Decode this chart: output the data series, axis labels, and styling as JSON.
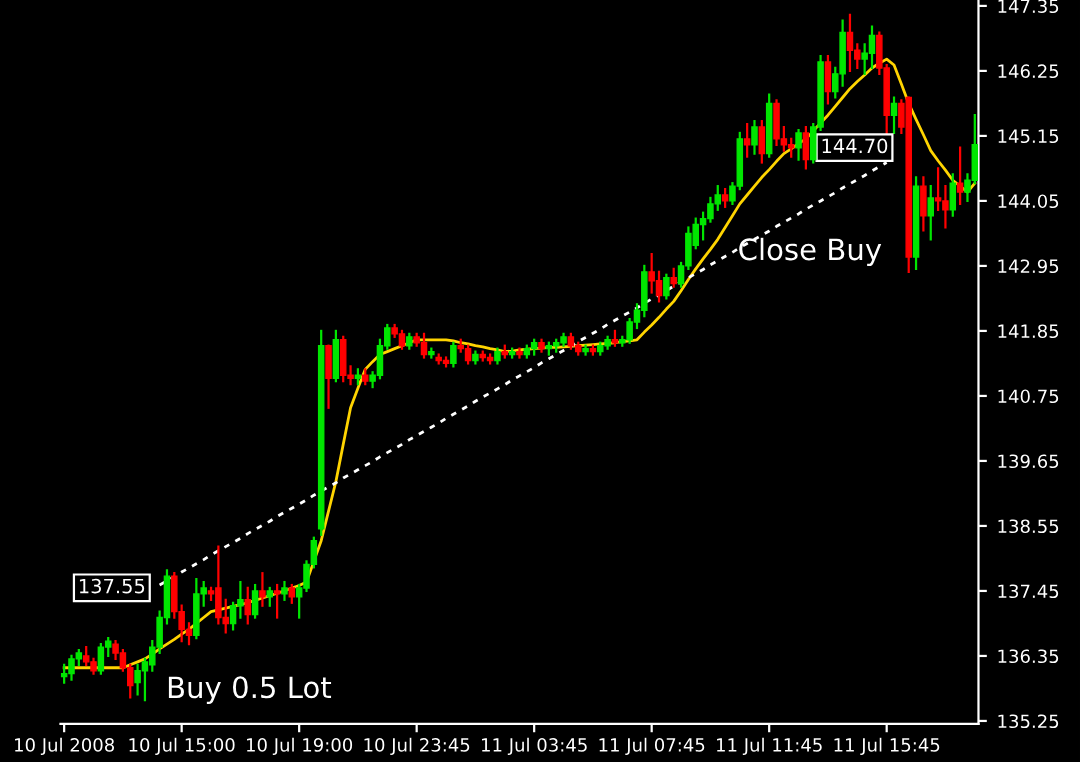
{
  "chart_data": {
    "type": "candlestick",
    "categories": [
      "10 Jul 2008",
      null,
      null,
      null,
      null,
      null,
      null,
      null,
      null,
      null,
      null,
      null,
      null,
      null,
      null,
      null,
      "10 Jul 15:00",
      null,
      null,
      null,
      null,
      null,
      null,
      null,
      null,
      null,
      null,
      null,
      null,
      null,
      null,
      null,
      "10 Jul 19:00",
      null,
      null,
      null,
      null,
      null,
      null,
      null,
      null,
      null,
      null,
      null,
      null,
      null,
      null,
      null,
      "10 Jul 23:45",
      null,
      null,
      null,
      null,
      null,
      null,
      null,
      null,
      null,
      null,
      null,
      null,
      null,
      null,
      null,
      "11 Jul 03:45",
      null,
      null,
      null,
      null,
      null,
      null,
      null,
      null,
      null,
      null,
      null,
      null,
      null,
      null,
      null,
      "11 Jul 07:45",
      null,
      null,
      null,
      null,
      null,
      null,
      null,
      null,
      null,
      null,
      null,
      null,
      null,
      null,
      null,
      "11 Jul 11:45",
      null,
      null,
      null,
      null,
      null,
      null,
      null,
      null,
      null,
      null,
      null,
      null,
      null,
      null,
      null,
      "11 Jul 15:45",
      null,
      null,
      null,
      null,
      null,
      null,
      null,
      null,
      null,
      null,
      null,
      null
    ],
    "ohlc": [
      [
        136.0,
        136.2,
        135.9,
        136.05
      ],
      [
        136.05,
        136.35,
        135.95,
        136.3
      ],
      [
        136.3,
        136.45,
        136.2,
        136.4
      ],
      [
        136.35,
        136.5,
        136.2,
        136.25
      ],
      [
        136.25,
        136.3,
        136.05,
        136.1
      ],
      [
        136.1,
        136.55,
        136.05,
        136.5
      ],
      [
        136.5,
        136.65,
        136.35,
        136.6
      ],
      [
        136.55,
        136.6,
        136.3,
        136.4
      ],
      [
        136.4,
        136.45,
        136.1,
        136.15
      ],
      [
        136.15,
        136.2,
        135.65,
        135.85
      ],
      [
        135.9,
        136.2,
        135.7,
        136.1
      ],
      [
        136.1,
        136.3,
        135.6,
        136.25
      ],
      [
        136.2,
        136.6,
        136.1,
        136.5
      ],
      [
        136.5,
        137.1,
        136.4,
        137.0
      ],
      [
        137.0,
        137.8,
        136.9,
        137.7
      ],
      [
        137.7,
        137.75,
        137.0,
        137.1
      ],
      [
        137.1,
        137.2,
        136.6,
        136.8
      ],
      [
        136.8,
        136.9,
        136.55,
        136.7
      ],
      [
        136.7,
        137.65,
        136.65,
        137.4
      ],
      [
        137.4,
        137.6,
        137.2,
        137.5
      ],
      [
        137.45,
        137.5,
        137.3,
        137.4
      ],
      [
        137.5,
        138.2,
        136.9,
        137.0
      ],
      [
        137.0,
        137.3,
        136.75,
        136.9
      ],
      [
        136.9,
        137.25,
        136.8,
        137.2
      ],
      [
        137.2,
        137.6,
        137.0,
        137.3
      ],
      [
        137.3,
        137.5,
        136.9,
        137.05
      ],
      [
        137.05,
        137.55,
        137.0,
        137.45
      ],
      [
        137.45,
        137.75,
        137.2,
        137.35
      ],
      [
        137.35,
        137.5,
        137.2,
        137.45
      ],
      [
        137.45,
        137.55,
        137.0,
        137.4
      ],
      [
        137.4,
        137.6,
        137.3,
        137.5
      ],
      [
        137.5,
        137.55,
        137.25,
        137.35
      ],
      [
        137.35,
        137.55,
        137.0,
        137.5
      ],
      [
        137.5,
        137.95,
        137.45,
        137.9
      ],
      [
        137.9,
        138.35,
        137.85,
        138.3
      ],
      [
        138.5,
        141.85,
        138.4,
        141.6
      ],
      [
        141.6,
        141.6,
        140.55,
        141.05
      ],
      [
        141.05,
        141.85,
        141.0,
        141.7
      ],
      [
        141.7,
        141.75,
        141.0,
        141.1
      ],
      [
        141.1,
        141.25,
        140.95,
        141.05
      ],
      [
        141.05,
        141.2,
        140.95,
        141.1
      ],
      [
        141.1,
        141.2,
        140.95,
        141.0
      ],
      [
        141.0,
        141.15,
        140.9,
        141.1
      ],
      [
        141.1,
        141.7,
        141.05,
        141.6
      ],
      [
        141.6,
        141.95,
        141.55,
        141.9
      ],
      [
        141.9,
        141.95,
        141.75,
        141.8
      ],
      [
        141.8,
        141.85,
        141.55,
        141.6
      ],
      [
        141.6,
        141.8,
        141.55,
        141.75
      ],
      [
        141.75,
        141.8,
        141.6,
        141.65
      ],
      [
        141.65,
        141.8,
        141.4,
        141.45
      ],
      [
        141.45,
        141.55,
        141.4,
        141.5
      ],
      [
        141.4,
        141.45,
        141.3,
        141.35
      ],
      [
        141.35,
        141.4,
        141.25,
        141.3
      ],
      [
        141.3,
        141.65,
        141.25,
        141.6
      ],
      [
        141.6,
        141.7,
        141.5,
        141.55
      ],
      [
        141.55,
        141.6,
        141.3,
        141.35
      ],
      [
        141.35,
        141.5,
        141.3,
        141.45
      ],
      [
        141.45,
        141.5,
        141.35,
        141.4
      ],
      [
        141.4,
        141.45,
        141.3,
        141.35
      ],
      [
        141.35,
        141.55,
        141.3,
        141.5
      ],
      [
        141.5,
        141.6,
        141.4,
        141.45
      ],
      [
        141.45,
        141.55,
        141.4,
        141.5
      ],
      [
        141.5,
        141.55,
        141.4,
        141.45
      ],
      [
        141.45,
        141.6,
        141.4,
        141.55
      ],
      [
        141.55,
        141.7,
        141.45,
        141.65
      ],
      [
        141.65,
        141.7,
        141.5,
        141.55
      ],
      [
        141.55,
        141.65,
        141.45,
        141.6
      ],
      [
        141.6,
        141.7,
        141.5,
        141.65
      ],
      [
        141.65,
        141.8,
        141.6,
        141.75
      ],
      [
        141.75,
        141.8,
        141.55,
        141.6
      ],
      [
        141.6,
        141.65,
        141.45,
        141.5
      ],
      [
        141.5,
        141.6,
        141.45,
        141.55
      ],
      [
        141.55,
        141.6,
        141.45,
        141.5
      ],
      [
        141.5,
        141.65,
        141.45,
        141.6
      ],
      [
        141.6,
        141.75,
        141.55,
        141.7
      ],
      [
        141.7,
        141.85,
        141.6,
        141.65
      ],
      [
        141.65,
        141.75,
        141.6,
        141.7
      ],
      [
        141.7,
        142.05,
        141.65,
        142.0
      ],
      [
        142.0,
        142.3,
        141.9,
        142.2
      ],
      [
        142.2,
        142.95,
        142.1,
        142.85
      ],
      [
        142.85,
        143.15,
        142.5,
        142.7
      ],
      [
        142.7,
        142.85,
        142.35,
        142.45
      ],
      [
        142.45,
        142.8,
        142.4,
        142.75
      ],
      [
        142.75,
        142.9,
        142.6,
        142.65
      ],
      [
        142.65,
        143.0,
        142.6,
        142.95
      ],
      [
        142.95,
        143.6,
        142.9,
        143.5
      ],
      [
        143.3,
        143.75,
        143.25,
        143.65
      ],
      [
        143.65,
        143.85,
        143.4,
        143.75
      ],
      [
        143.75,
        144.1,
        143.7,
        144.0
      ],
      [
        144.0,
        144.3,
        143.9,
        144.15
      ],
      [
        144.15,
        144.25,
        143.95,
        144.05
      ],
      [
        144.05,
        144.35,
        144.0,
        144.3
      ],
      [
        144.3,
        145.2,
        144.25,
        145.1
      ],
      [
        145.1,
        145.35,
        144.8,
        145.0
      ],
      [
        145.0,
        145.4,
        144.85,
        145.3
      ],
      [
        145.3,
        145.4,
        144.7,
        144.85
      ],
      [
        144.85,
        145.85,
        144.8,
        145.7
      ],
      [
        145.7,
        145.75,
        145.0,
        145.1
      ],
      [
        145.1,
        145.3,
        144.9,
        145.0
      ],
      [
        145.0,
        145.1,
        144.8,
        144.95
      ],
      [
        144.95,
        145.25,
        144.75,
        145.2
      ],
      [
        145.2,
        145.3,
        144.6,
        144.75
      ],
      [
        144.75,
        145.35,
        144.7,
        145.3
      ],
      [
        145.3,
        146.5,
        145.25,
        146.4
      ],
      [
        146.4,
        146.5,
        145.7,
        145.9
      ],
      [
        145.9,
        146.3,
        145.8,
        146.2
      ],
      [
        146.2,
        147.1,
        146.0,
        146.9
      ],
      [
        146.9,
        147.2,
        146.25,
        146.6
      ],
      [
        146.6,
        146.7,
        146.3,
        146.45
      ],
      [
        146.45,
        146.7,
        146.2,
        146.55
      ],
      [
        146.55,
        147.0,
        146.3,
        146.85
      ],
      [
        146.85,
        146.9,
        146.2,
        146.3
      ],
      [
        146.3,
        146.35,
        145.2,
        145.5
      ],
      [
        145.5,
        145.8,
        145.2,
        145.7
      ],
      [
        145.7,
        145.75,
        145.2,
        145.3
      ],
      [
        145.8,
        145.8,
        142.85,
        143.1
      ],
      [
        143.1,
        144.45,
        142.9,
        144.3
      ],
      [
        144.3,
        144.45,
        143.55,
        143.8
      ],
      [
        143.8,
        144.3,
        143.4,
        144.1
      ],
      [
        144.1,
        144.6,
        143.9,
        144.05
      ],
      [
        144.05,
        144.3,
        143.6,
        143.9
      ],
      [
        143.9,
        144.5,
        143.8,
        144.35
      ],
      [
        144.35,
        144.95,
        144.0,
        144.2
      ],
      [
        144.2,
        144.5,
        144.05,
        144.4
      ],
      [
        144.4,
        145.5,
        144.35,
        145.0
      ]
    ],
    "colors": [
      "#00e600",
      "#00e600",
      "#00e600",
      "#ff0000",
      "#ff0000",
      "#00e600",
      "#00e600",
      "#ff0000",
      "#ff0000",
      "#ff0000",
      "#00e600",
      "#00e600",
      "#00e600",
      "#00e600",
      "#00e600",
      "#ff0000",
      "#ff0000",
      "#ff0000",
      "#00e600",
      "#00e600",
      "#ff0000",
      "#ff0000",
      "#ff0000",
      "#00e600",
      "#00e600",
      "#ff0000",
      "#00e600",
      "#ff0000",
      "#00e600",
      "#ff0000",
      "#00e600",
      "#ff0000",
      "#00e600",
      "#00e600",
      "#00e600",
      "#00e600",
      "#ff0000",
      "#00e600",
      "#ff0000",
      "#ff0000",
      "#00e600",
      "#ff0000",
      "#00e600",
      "#00e600",
      "#00e600",
      "#ff0000",
      "#ff0000",
      "#00e600",
      "#ff0000",
      "#ff0000",
      "#00e600",
      "#ff0000",
      "#ff0000",
      "#00e600",
      "#ff0000",
      "#ff0000",
      "#00e600",
      "#ff0000",
      "#ff0000",
      "#00e600",
      "#ff0000",
      "#00e600",
      "#ff0000",
      "#00e600",
      "#00e600",
      "#ff0000",
      "#00e600",
      "#00e600",
      "#00e600",
      "#ff0000",
      "#ff0000",
      "#00e600",
      "#ff0000",
      "#00e600",
      "#00e600",
      "#ff0000",
      "#00e600",
      "#00e600",
      "#00e600",
      "#00e600",
      "#ff0000",
      "#ff0000",
      "#00e600",
      "#ff0000",
      "#00e600",
      "#00e600",
      "#00e600",
      "#00e600",
      "#00e600",
      "#00e600",
      "#ff0000",
      "#00e600",
      "#00e600",
      "#ff0000",
      "#00e600",
      "#ff0000",
      "#00e600",
      "#ff0000",
      "#ff0000",
      "#ff0000",
      "#00e600",
      "#ff0000",
      "#00e600",
      "#00e600",
      "#ff0000",
      "#00e600",
      "#00e600",
      "#ff0000",
      "#ff0000",
      "#00e600",
      "#00e600",
      "#ff0000",
      "#ff0000",
      "#00e600",
      "#ff0000",
      "#ff0000",
      "#00e600",
      "#ff0000",
      "#00e600",
      "#ff0000",
      "#ff0000",
      "#00e600",
      "#ff0000",
      "#00e600",
      "#00e600"
    ],
    "series": [
      {
        "type": "line",
        "color": "#ffd400",
        "values": [
          136.15,
          136.15,
          136.15,
          136.15,
          136.15,
          136.15,
          136.15,
          136.15,
          136.15,
          136.2,
          136.25,
          136.3,
          136.38,
          136.47,
          136.55,
          136.63,
          136.72,
          136.8,
          136.9,
          137.0,
          137.1,
          137.13,
          137.16,
          137.19,
          137.22,
          137.25,
          137.29,
          137.33,
          137.37,
          137.41,
          137.45,
          137.5,
          137.54,
          137.6,
          137.95,
          138.3,
          138.8,
          139.3,
          139.93,
          140.55,
          140.88,
          141.2,
          141.33,
          141.45,
          141.5,
          141.55,
          141.6,
          141.65,
          141.7,
          141.7,
          141.7,
          141.7,
          141.7,
          141.68,
          141.65,
          141.63,
          141.6,
          141.58,
          141.55,
          141.53,
          141.5,
          141.51,
          141.53,
          141.54,
          141.55,
          141.56,
          141.57,
          141.57,
          141.58,
          141.59,
          141.6,
          141.61,
          141.62,
          141.63,
          141.64,
          141.65,
          141.67,
          141.68,
          141.7,
          141.83,
          141.95,
          142.08,
          142.22,
          142.35,
          142.53,
          142.72,
          142.9,
          143.07,
          143.23,
          143.4,
          143.6,
          143.8,
          144.0,
          144.15,
          144.3,
          144.45,
          144.58,
          144.72,
          144.85,
          144.93,
          145.02,
          145.1,
          145.23,
          145.37,
          145.5,
          145.65,
          145.8,
          145.95,
          146.07,
          146.18,
          146.3,
          146.38,
          146.45,
          146.35,
          146.03,
          145.7,
          145.43,
          145.17,
          144.9,
          144.73,
          144.57,
          144.4,
          144.3,
          144.2,
          144.35
        ]
      },
      {
        "type": "line",
        "color": "#ffffff",
        "line_style": "dotted",
        "values": [
          null,
          null,
          null,
          null,
          null,
          null,
          null,
          null,
          null,
          null,
          null,
          null,
          null,
          137.55,
          137.62,
          137.69,
          137.77,
          137.84,
          137.91,
          137.98,
          138.06,
          138.13,
          138.2,
          138.27,
          138.34,
          138.42,
          138.49,
          138.56,
          138.63,
          138.71,
          138.78,
          138.85,
          138.92,
          138.99,
          139.07,
          139.14,
          139.21,
          139.28,
          139.36,
          139.43,
          139.5,
          139.57,
          139.64,
          139.72,
          139.79,
          139.86,
          139.93,
          140.01,
          140.08,
          140.15,
          140.22,
          140.29,
          140.37,
          140.44,
          140.51,
          140.58,
          140.66,
          140.73,
          140.8,
          140.87,
          140.94,
          141.02,
          141.09,
          141.16,
          141.23,
          141.31,
          141.38,
          141.45,
          141.52,
          141.59,
          141.67,
          141.74,
          141.81,
          141.88,
          141.96,
          142.03,
          142.1,
          142.17,
          142.24,
          142.32,
          142.39,
          142.46,
          142.53,
          142.61,
          142.68,
          142.75,
          142.82,
          142.89,
          142.97,
          143.04,
          143.11,
          143.18,
          143.26,
          143.33,
          143.4,
          143.47,
          143.54,
          143.62,
          143.69,
          143.76,
          143.83,
          143.91,
          143.98,
          144.05,
          144.12,
          144.19,
          144.27,
          144.34,
          144.41,
          144.48,
          144.56,
          144.63,
          144.7,
          null,
          null,
          null,
          null,
          null,
          null,
          null,
          null,
          null,
          null,
          null,
          null
        ]
      }
    ],
    "annotations": [
      "137.55",
      "144.70",
      "Buy 0.5 Lot",
      "Close Buy"
    ],
    "ylim": [
      135.2,
      147.45
    ],
    "yticks": [
      135.25,
      136.35,
      137.45,
      138.55,
      139.65,
      140.75,
      141.85,
      142.95,
      144.05,
      145.15,
      146.25,
      147.35
    ]
  }
}
